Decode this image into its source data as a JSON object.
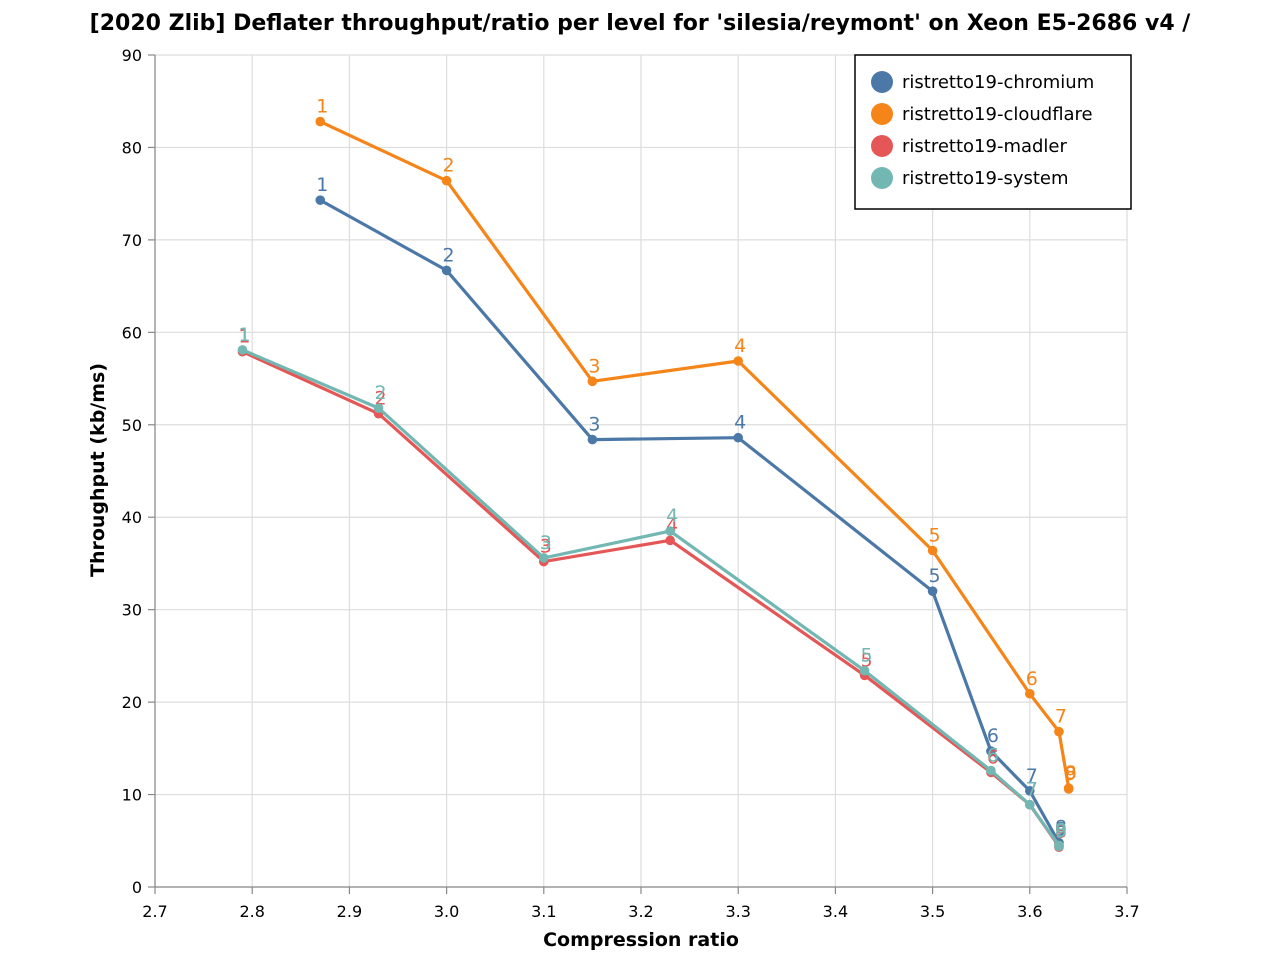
{
  "chart_data": {
    "type": "line",
    "title": "[2020 Zlib] Deflater throughput/ratio per level for 'silesia/reymont' on Xeon E5-2686 v4 /",
    "xlabel": "Compression ratio",
    "ylabel": "Throughput (kb/ms)",
    "xlim": [
      2.7,
      3.7
    ],
    "ylim": [
      0,
      90
    ],
    "x_ticks": [
      "2.7",
      "2.8",
      "2.9",
      "3.0",
      "3.1",
      "3.2",
      "3.3",
      "3.4",
      "3.5",
      "3.6",
      "3.7"
    ],
    "y_ticks": [
      "0",
      "10",
      "20",
      "30",
      "40",
      "50",
      "60",
      "70",
      "80",
      "90"
    ],
    "grid": true,
    "legend_position": "top-right",
    "series": [
      {
        "name": "ristretto19-chromium",
        "color": "#4c78a8",
        "labels": [
          "1",
          "2",
          "3",
          "4",
          "5",
          "6",
          "7",
          "8",
          "9"
        ],
        "x": [
          2.87,
          3.0,
          3.15,
          3.3,
          3.5,
          3.56,
          3.6,
          3.63,
          3.63
        ],
        "y": [
          74.3,
          66.7,
          48.4,
          48.6,
          32.0,
          14.7,
          10.4,
          4.8,
          4.6
        ]
      },
      {
        "name": "ristretto19-cloudflare",
        "color": "#f58518",
        "labels": [
          "1",
          "2",
          "3",
          "4",
          "5",
          "6",
          "7",
          "8",
          "9"
        ],
        "x": [
          2.87,
          3.0,
          3.15,
          3.3,
          3.5,
          3.6,
          3.63,
          3.64,
          3.64
        ],
        "y": [
          82.8,
          76.4,
          54.7,
          56.9,
          36.4,
          20.9,
          16.8,
          10.7,
          10.6
        ]
      },
      {
        "name": "ristretto19-madler",
        "color": "#e45756",
        "labels": [
          "1",
          "2",
          "3",
          "4",
          "5",
          "6",
          "7",
          "8",
          "9"
        ],
        "x": [
          2.79,
          2.93,
          3.1,
          3.23,
          3.43,
          3.56,
          3.6,
          3.63,
          3.63
        ],
        "y": [
          57.9,
          51.2,
          35.2,
          37.5,
          22.9,
          12.4,
          8.9,
          4.4,
          4.3
        ]
      },
      {
        "name": "ristretto19-system",
        "color": "#72b7b2",
        "labels": [
          "1",
          "2",
          "3",
          "4",
          "5",
          "6",
          "7",
          "8",
          "9"
        ],
        "x": [
          2.79,
          2.93,
          3.1,
          3.23,
          3.43,
          3.56,
          3.6,
          3.63,
          3.63
        ],
        "y": [
          58.1,
          51.8,
          35.6,
          38.5,
          23.4,
          12.6,
          8.9,
          4.5,
          4.4
        ]
      }
    ]
  }
}
